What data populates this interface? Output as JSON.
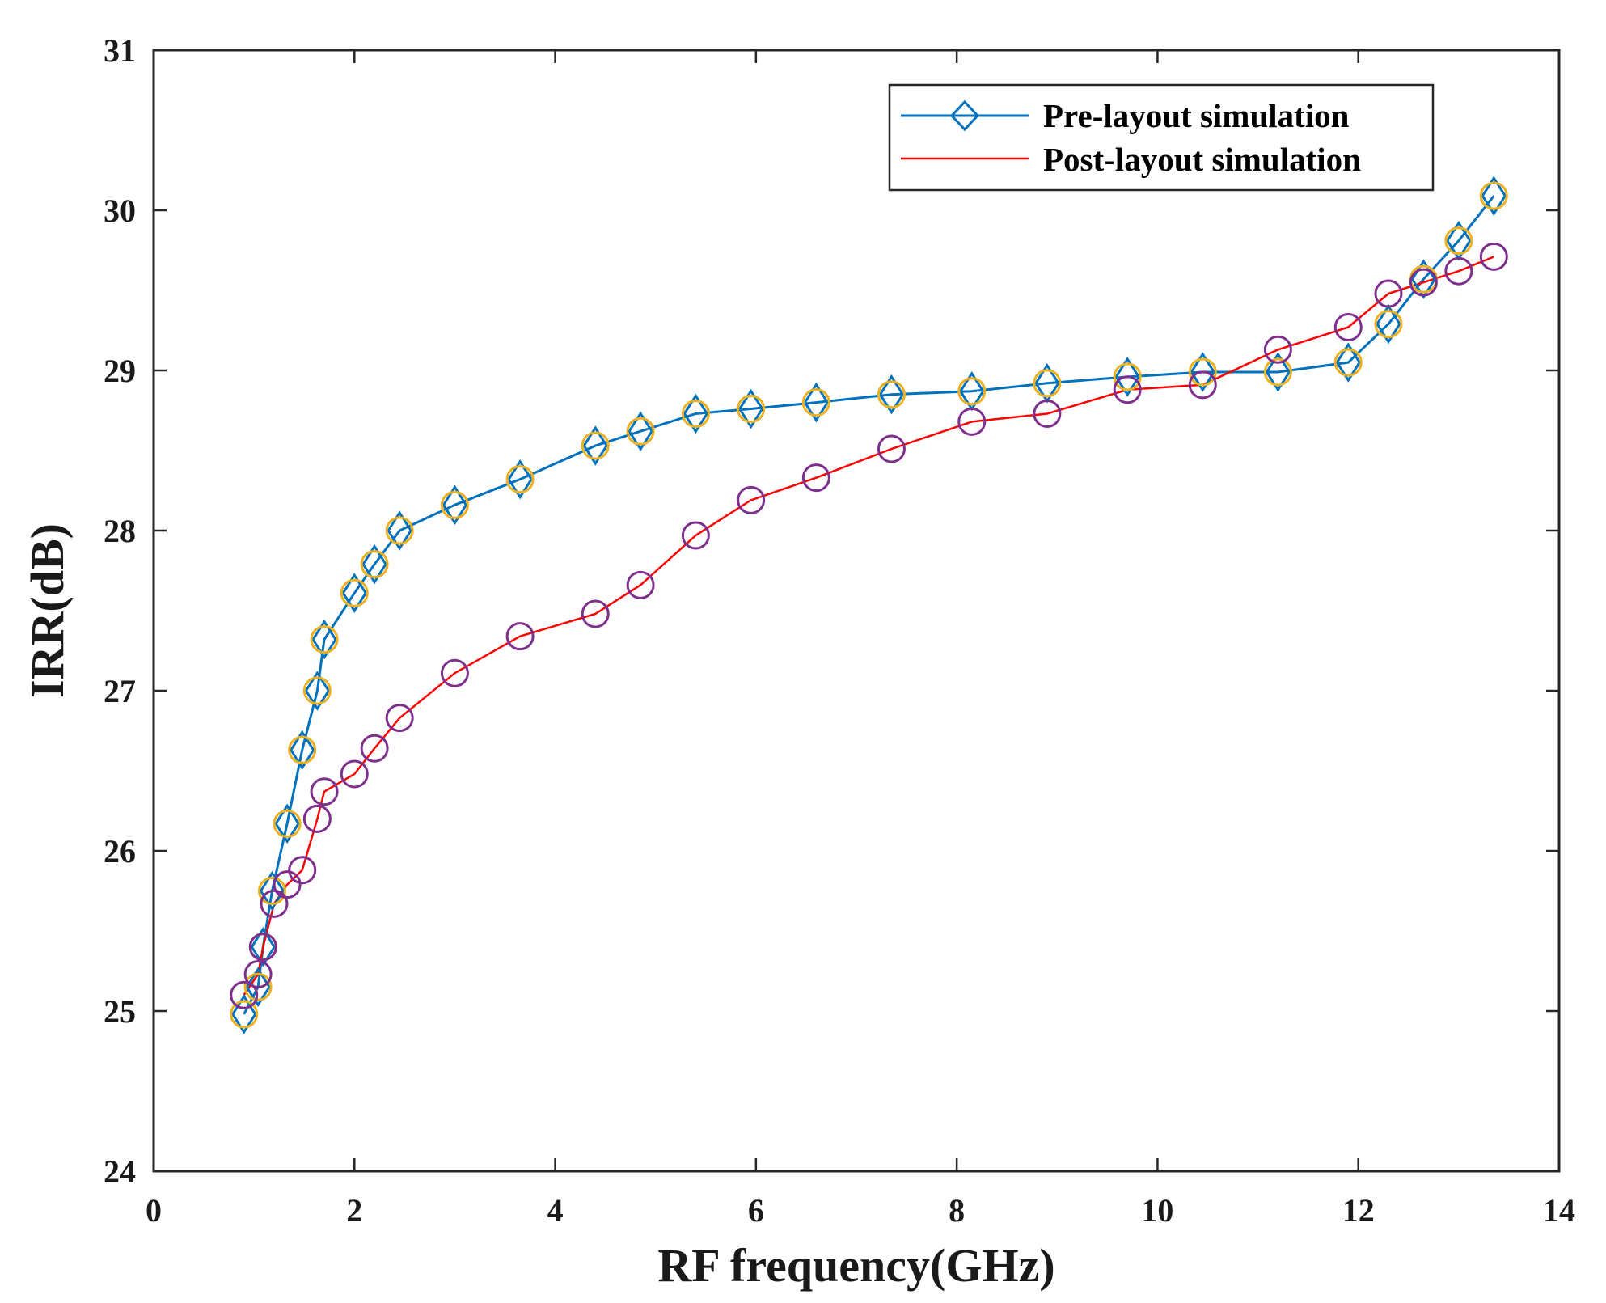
{
  "chart_data": {
    "type": "line",
    "title": "",
    "xlabel": "RF frequency(GHz)",
    "ylabel": "IRR(dB)",
    "xlim": [
      0,
      14
    ],
    "ylim": [
      24,
      31
    ],
    "xticks": [
      0,
      2,
      4,
      6,
      8,
      10,
      12,
      14
    ],
    "yticks": [
      24,
      25,
      26,
      27,
      28,
      29,
      30,
      31
    ],
    "grid": false,
    "legend_position": "top-right",
    "series": [
      {
        "name": "Pre-layout simulation",
        "color": "#0072BD",
        "marker": "diamond",
        "marker_overlay": "circle",
        "overlay_color": "#EDB120",
        "x": [
          0.9,
          1.04,
          1.09,
          1.18,
          1.33,
          1.48,
          1.63,
          1.7,
          2.0,
          2.2,
          2.45,
          3.0,
          3.65,
          4.4,
          4.85,
          5.4,
          5.95,
          6.6,
          7.35,
          8.15,
          8.9,
          9.7,
          10.45,
          11.2,
          11.9,
          12.3,
          12.65,
          13.0,
          13.35
        ],
        "y": [
          24.98,
          25.15,
          25.4,
          25.75,
          26.17,
          26.63,
          27.0,
          27.32,
          27.61,
          27.79,
          28.0,
          28.16,
          28.32,
          28.53,
          28.62,
          28.73,
          28.76,
          28.8,
          28.85,
          28.87,
          28.92,
          28.96,
          28.99,
          28.99,
          29.05,
          29.29,
          29.57,
          29.81,
          30.09
        ]
      },
      {
        "name": "Post-layout simulation",
        "color": "#FF0000",
        "marker": "none",
        "marker_overlay": "circle",
        "overlay_color": "#7E2F8E",
        "x": [
          0.9,
          1.04,
          1.09,
          1.2,
          1.33,
          1.48,
          1.63,
          1.7,
          2.0,
          2.2,
          2.45,
          3.0,
          3.65,
          4.4,
          4.85,
          5.4,
          5.95,
          6.6,
          7.35,
          8.15,
          8.9,
          9.7,
          10.45,
          11.2,
          11.9,
          12.3,
          12.65,
          13.0,
          13.35
        ],
        "y": [
          25.1,
          25.23,
          25.4,
          25.67,
          25.79,
          25.88,
          26.2,
          26.37,
          26.48,
          26.64,
          26.83,
          27.11,
          27.34,
          27.48,
          27.66,
          27.97,
          28.19,
          28.33,
          28.51,
          28.68,
          28.73,
          28.88,
          28.91,
          29.13,
          29.27,
          29.48,
          29.55,
          29.62,
          29.71
        ]
      }
    ]
  }
}
